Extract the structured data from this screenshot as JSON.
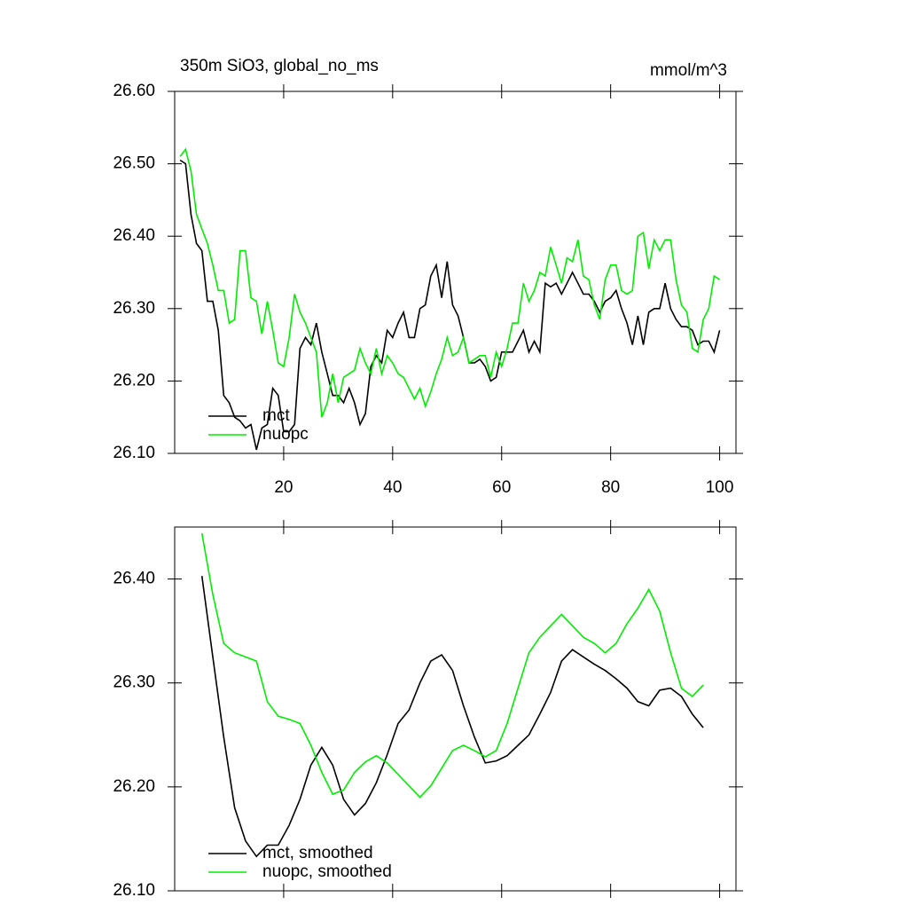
{
  "chart_data": [
    {
      "type": "line",
      "title": "350m SiO3, global_no_ms",
      "units": "mmol/m^3",
      "x": [
        1,
        2,
        3,
        4,
        5,
        6,
        7,
        8,
        9,
        10,
        11,
        12,
        13,
        14,
        15,
        16,
        17,
        18,
        19,
        20,
        21,
        22,
        23,
        24,
        25,
        26,
        27,
        28,
        29,
        30,
        31,
        32,
        33,
        34,
        35,
        36,
        37,
        38,
        39,
        40,
        41,
        42,
        43,
        44,
        45,
        46,
        47,
        48,
        49,
        50,
        51,
        52,
        53,
        54,
        55,
        56,
        57,
        58,
        59,
        60,
        61,
        62,
        63,
        64,
        65,
        66,
        67,
        68,
        69,
        70,
        71,
        72,
        73,
        74,
        75,
        76,
        77,
        78,
        79,
        80,
        81,
        82,
        83,
        84,
        85,
        86,
        87,
        88,
        89,
        90,
        91,
        92,
        93,
        94,
        95,
        96,
        97,
        98,
        99,
        100
      ],
      "series": [
        {
          "name": "mct",
          "color": "#000000",
          "values": [
            26.505,
            26.5,
            26.43,
            26.39,
            26.38,
            26.31,
            26.31,
            26.27,
            26.18,
            26.17,
            26.15,
            26.145,
            26.135,
            26.14,
            26.105,
            26.135,
            26.14,
            26.19,
            26.18,
            26.13,
            26.13,
            26.14,
            26.245,
            26.26,
            26.25,
            26.28,
            26.24,
            26.21,
            26.18,
            26.18,
            26.17,
            26.19,
            26.17,
            26.14,
            26.155,
            26.22,
            26.235,
            26.225,
            26.27,
            26.26,
            26.28,
            26.295,
            26.26,
            26.26,
            26.3,
            26.305,
            26.345,
            26.36,
            26.315,
            26.365,
            26.305,
            26.29,
            26.26,
            26.225,
            26.225,
            26.23,
            26.22,
            26.2,
            26.205,
            26.24,
            26.24,
            26.24,
            26.255,
            26.27,
            26.24,
            26.255,
            26.24,
            26.335,
            26.33,
            26.335,
            26.32,
            26.335,
            26.35,
            26.335,
            26.32,
            26.32,
            26.31,
            26.295,
            26.31,
            26.315,
            26.325,
            26.3,
            26.28,
            26.25,
            26.29,
            26.25,
            26.295,
            26.3,
            26.3,
            26.335,
            26.3,
            26.285,
            26.275,
            26.275,
            26.27,
            26.25,
            26.255,
            26.255,
            26.24,
            26.27
          ]
        },
        {
          "name": "nuopc",
          "color": "#00ee00",
          "values": [
            26.51,
            26.52,
            26.49,
            26.43,
            26.41,
            26.39,
            26.36,
            26.325,
            26.325,
            26.28,
            26.285,
            26.38,
            26.38,
            26.315,
            26.31,
            26.265,
            26.31,
            26.27,
            26.225,
            26.22,
            26.26,
            26.32,
            26.295,
            26.28,
            26.26,
            26.24,
            26.15,
            26.17,
            26.21,
            26.17,
            26.205,
            26.21,
            26.215,
            26.245,
            26.225,
            26.21,
            26.245,
            26.21,
            26.235,
            26.225,
            26.21,
            26.205,
            26.19,
            26.175,
            26.19,
            26.165,
            26.185,
            26.21,
            26.23,
            26.26,
            26.235,
            26.24,
            26.26,
            26.225,
            26.23,
            26.235,
            26.235,
            26.205,
            26.24,
            26.22,
            26.245,
            26.28,
            26.28,
            26.335,
            26.31,
            26.325,
            26.35,
            26.345,
            26.385,
            26.36,
            26.335,
            26.37,
            26.365,
            26.395,
            26.345,
            26.34,
            26.305,
            26.285,
            26.34,
            26.36,
            26.36,
            26.325,
            26.32,
            26.325,
            26.4,
            26.405,
            26.355,
            26.395,
            26.38,
            26.395,
            26.395,
            26.34,
            26.305,
            26.295,
            26.245,
            26.24,
            26.285,
            26.3,
            26.345,
            26.34
          ]
        }
      ],
      "xlim": [
        0,
        103
      ],
      "xticks": [
        20,
        40,
        60,
        80,
        100
      ],
      "ylim": [
        26.1,
        26.6
      ],
      "yticks": [
        {
          "value": 26.1,
          "label": "26.10"
        },
        {
          "value": 26.2,
          "label": "26.20"
        },
        {
          "value": 26.3,
          "label": "26.30"
        },
        {
          "value": 26.4,
          "label": "26.40"
        },
        {
          "value": 26.5,
          "label": "26.50"
        },
        {
          "value": 26.6,
          "label": "26.60"
        }
      ],
      "legend": "lower left"
    },
    {
      "type": "line",
      "x": [
        5,
        7,
        9,
        11,
        13,
        15,
        17,
        19,
        21,
        23,
        25,
        27,
        29,
        31,
        33,
        35,
        37,
        39,
        41,
        43,
        45,
        47,
        49,
        51,
        53,
        55,
        57,
        59,
        61,
        63,
        65,
        67,
        69,
        71,
        73,
        75,
        77,
        79,
        81,
        83,
        85,
        87,
        89,
        91,
        93,
        95,
        97
      ],
      "series": [
        {
          "name": "mct, smoothed",
          "color": "#000000",
          "values": [
            26.403,
            26.325,
            26.248,
            26.18,
            26.148,
            26.133,
            26.144,
            26.144,
            26.163,
            26.188,
            26.221,
            26.238,
            26.221,
            26.188,
            26.173,
            26.184,
            26.204,
            26.231,
            26.261,
            26.274,
            26.3,
            26.321,
            26.327,
            26.312,
            26.278,
            26.248,
            26.223,
            26.225,
            26.23,
            26.24,
            26.25,
            26.27,
            26.291,
            26.321,
            26.332,
            26.325,
            26.318,
            26.312,
            26.304,
            26.295,
            26.282,
            26.278,
            26.293,
            26.295,
            26.287,
            26.27,
            26.257
          ]
        },
        {
          "name": "nuopc, smoothed",
          "color": "#00ee00",
          "values": [
            26.444,
            26.385,
            26.338,
            26.329,
            26.325,
            26.321,
            26.282,
            26.268,
            26.265,
            26.261,
            26.24,
            26.214,
            26.193,
            26.197,
            26.214,
            26.224,
            26.23,
            26.223,
            26.212,
            26.201,
            26.19,
            26.201,
            26.218,
            26.235,
            26.24,
            26.235,
            26.229,
            26.235,
            26.261,
            26.295,
            26.329,
            26.344,
            26.355,
            26.366,
            26.355,
            26.344,
            26.338,
            26.329,
            26.338,
            26.357,
            26.372,
            26.39,
            26.369,
            26.329,
            26.295,
            26.287,
            26.298
          ]
        }
      ],
      "xlim": [
        0,
        103
      ],
      "ylim": [
        26.1,
        26.45
      ],
      "yticks": [
        {
          "value": 26.1,
          "label": "26.10"
        },
        {
          "value": 26.2,
          "label": "26.20"
        },
        {
          "value": 26.3,
          "label": "26.30"
        },
        {
          "value": 26.4,
          "label": "26.40"
        }
      ],
      "legend": "lower left"
    }
  ]
}
